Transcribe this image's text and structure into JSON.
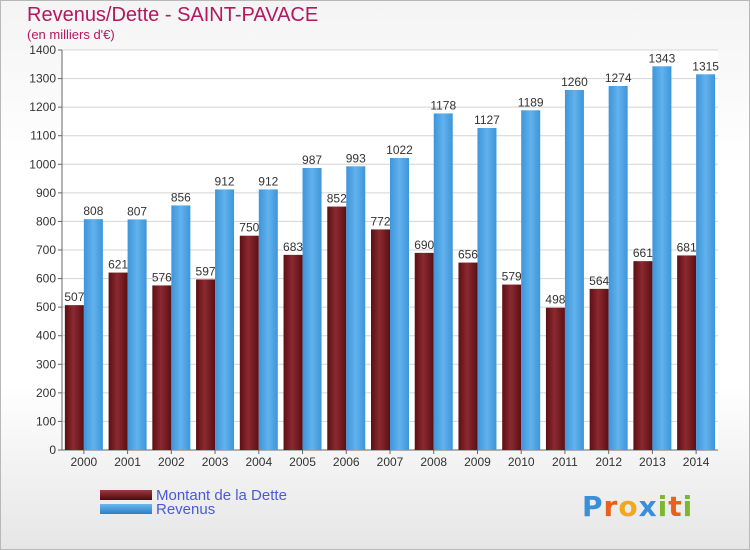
{
  "chart_data": {
    "type": "bar",
    "title": "Revenus/Dette - SAINT-PAVACE",
    "subtitle": "(en milliers d'€)",
    "categories": [
      "2000",
      "2001",
      "2002",
      "2003",
      "2004",
      "2005",
      "2006",
      "2007",
      "2008",
      "2009",
      "2010",
      "2011",
      "2012",
      "2013",
      "2014"
    ],
    "series": [
      {
        "name": "Montant de la Dette",
        "color": "#7a1f24",
        "values": [
          507,
          621,
          576,
          597,
          750,
          683,
          852,
          772,
          690,
          656,
          579,
          498,
          564,
          661,
          681
        ]
      },
      {
        "name": "Revenus",
        "color": "#4aa3e6",
        "values": [
          808,
          807,
          856,
          912,
          912,
          987,
          993,
          1022,
          1178,
          1127,
          1189,
          1260,
          1274,
          1343,
          1315
        ]
      }
    ],
    "ylim": [
      0,
      1400
    ],
    "yticks": [
      0,
      100,
      200,
      300,
      400,
      500,
      600,
      700,
      800,
      900,
      1000,
      1100,
      1200,
      1300,
      1400
    ],
    "grid": true,
    "legend_position": "bottom-left"
  },
  "logo": {
    "text": "Proxiti",
    "letter_colors": [
      "#3a8fd8",
      "#e8601c",
      "#f2a81d",
      "#3a8fd8",
      "#7cb82f",
      "#e8601c",
      "#7cb82f"
    ]
  }
}
